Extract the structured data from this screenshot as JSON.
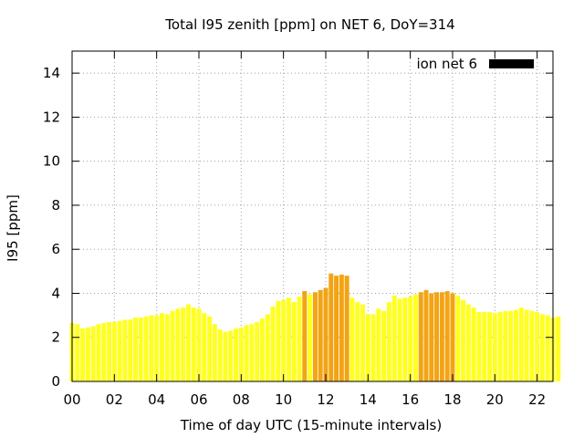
{
  "chart_data": {
    "type": "bar",
    "title": "Total I95 zenith [ppm] on NET 6, DoY=314",
    "xlabel": "Time of day UTC (15-minute intervals)",
    "ylabel": "I95 [ppm]",
    "xlim": [
      0,
      22.75
    ],
    "ylim": [
      0,
      15
    ],
    "x_ticks": [
      "00",
      "02",
      "04",
      "06",
      "08",
      "10",
      "12",
      "14",
      "16",
      "18",
      "20",
      "22"
    ],
    "y_ticks": [
      "0",
      "2",
      "4",
      "6",
      "8",
      "10",
      "12",
      "14"
    ],
    "grid": true,
    "legend_position": "top-right",
    "x_step_hours": 0.25,
    "series": [
      {
        "name": "ion net 6",
        "legend_color": "#000000",
        "values": [
          2.65,
          2.6,
          2.4,
          2.45,
          2.5,
          2.6,
          2.65,
          2.7,
          2.7,
          2.75,
          2.8,
          2.8,
          2.9,
          2.9,
          2.95,
          3.0,
          3.0,
          3.1,
          3.05,
          3.2,
          3.3,
          3.35,
          3.5,
          3.35,
          3.3,
          3.1,
          2.95,
          2.6,
          2.35,
          2.25,
          2.3,
          2.4,
          2.45,
          2.55,
          2.6,
          2.7,
          2.85,
          3.05,
          3.4,
          3.65,
          3.7,
          3.8,
          3.6,
          3.85,
          4.1,
          3.95,
          4.05,
          4.15,
          4.25,
          4.9,
          4.8,
          4.85,
          4.8,
          3.8,
          3.6,
          3.5,
          3.05,
          3.05,
          3.3,
          3.2,
          3.6,
          3.9,
          3.75,
          3.8,
          3.85,
          3.95,
          4.05,
          4.15,
          4.0,
          4.05,
          4.05,
          4.1,
          4.0,
          3.9,
          3.7,
          3.5,
          3.35,
          3.15,
          3.15,
          3.15,
          3.1,
          3.15,
          3.2,
          3.2,
          3.25,
          3.35,
          3.25,
          3.2,
          3.15,
          3.05,
          3.0,
          2.9,
          2.95
        ]
      }
    ],
    "colors": {
      "below_4": "#ffff22",
      "from_4": "#f2a414"
    }
  }
}
